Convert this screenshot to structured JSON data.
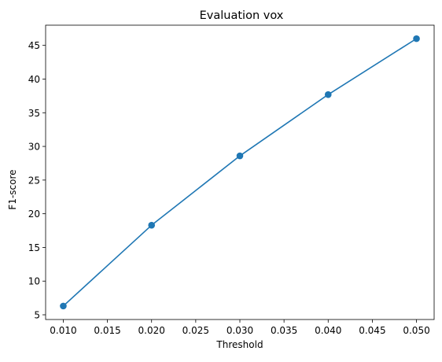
{
  "chart_data": {
    "type": "line",
    "title": "Evaluation vox",
    "xlabel": "Threshold",
    "ylabel": "F1-score",
    "x": [
      0.01,
      0.02,
      0.03,
      0.04,
      0.05
    ],
    "series": [
      {
        "values": [
          6.3,
          18.3,
          28.6,
          37.7,
          46.0
        ],
        "color": "#1f77b4",
        "marker": "circle"
      }
    ],
    "xlim": [
      0.008,
      0.052
    ],
    "ylim": [
      4.3,
      48.0
    ],
    "xticks": [
      "0.010",
      "0.015",
      "0.020",
      "0.025",
      "0.030",
      "0.035",
      "0.040",
      "0.045",
      "0.050"
    ],
    "yticks": [
      "5",
      "10",
      "15",
      "20",
      "25",
      "30",
      "35",
      "40",
      "45"
    ],
    "grid": false,
    "legend": "none"
  }
}
